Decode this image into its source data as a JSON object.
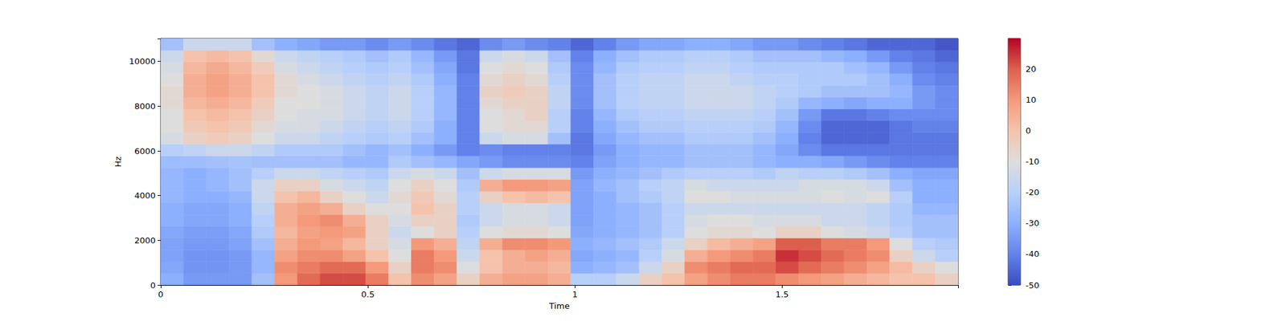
{
  "chart_data": {
    "type": "heatmap",
    "xlabel": "Time",
    "ylabel": "Hz",
    "xlim": [
      0,
      1.925
    ],
    "ylim": [
      0,
      11025
    ],
    "xticks": [
      0,
      0.5,
      1,
      1.5
    ],
    "yticks": [
      0,
      2000,
      4000,
      6000,
      8000,
      10000
    ],
    "grid": false,
    "x_edges": [
      0,
      0.055,
      0.11,
      0.165,
      0.22,
      0.275,
      0.33,
      0.385,
      0.44,
      0.495,
      0.55,
      0.605,
      0.66,
      0.715,
      0.77,
      0.825,
      0.88,
      0.935,
      0.99,
      1.045,
      1.1,
      1.155,
      1.21,
      1.265,
      1.32,
      1.375,
      1.43,
      1.485,
      1.54,
      1.595,
      1.65,
      1.705,
      1.76,
      1.815,
      1.87,
      1.925
    ],
    "y_edges": [
      0,
      525,
      1050,
      1575,
      2100,
      2625,
      3150,
      3675,
      4200,
      4725,
      5250,
      5775,
      6300,
      6825,
      7350,
      7875,
      8400,
      8925,
      9450,
      9975,
      10500,
      11025
    ],
    "z": [
      [
        -30,
        -35,
        -35,
        -35,
        -25,
        10,
        18,
        22,
        22,
        15,
        0,
        12,
        8,
        -5,
        5,
        8,
        8,
        5,
        -20,
        -20,
        -15,
        -5,
        0,
        8,
        12,
        15,
        15,
        12,
        10,
        8,
        5,
        3,
        0,
        0,
        -5
      ],
      [
        -32,
        -36,
        -36,
        -35,
        -28,
        12,
        15,
        18,
        18,
        10,
        -5,
        15,
        12,
        -10,
        0,
        5,
        5,
        3,
        -30,
        -28,
        -25,
        -15,
        -5,
        12,
        15,
        18,
        18,
        22,
        18,
        15,
        12,
        8,
        2,
        -5,
        -10
      ],
      [
        -33,
        -36,
        -36,
        -35,
        -28,
        8,
        12,
        12,
        8,
        0,
        -10,
        15,
        10,
        -15,
        0,
        5,
        8,
        5,
        -32,
        -30,
        -28,
        -20,
        -12,
        5,
        10,
        12,
        15,
        25,
        22,
        18,
        15,
        12,
        -5,
        -15,
        -20
      ],
      [
        -33,
        -35,
        -35,
        -33,
        -25,
        5,
        10,
        8,
        3,
        -5,
        -12,
        10,
        5,
        -18,
        5,
        12,
        12,
        10,
        -30,
        -28,
        -25,
        -22,
        -15,
        -5,
        2,
        5,
        8,
        20,
        20,
        15,
        15,
        10,
        -10,
        -20,
        -22
      ],
      [
        -32,
        -34,
        -34,
        -32,
        -22,
        3,
        8,
        10,
        8,
        -5,
        -15,
        -10,
        -5,
        -20,
        -10,
        -8,
        -8,
        -10,
        -32,
        -30,
        -28,
        -25,
        -20,
        -10,
        -8,
        -8,
        -10,
        -5,
        -5,
        -10,
        -12,
        -15,
        -20,
        -25,
        -25
      ],
      [
        -30,
        -32,
        -32,
        -30,
        -20,
        5,
        10,
        12,
        5,
        -5,
        -12,
        -5,
        -5,
        -22,
        -15,
        -12,
        -12,
        -15,
        -33,
        -30,
        -28,
        -25,
        -20,
        -12,
        -10,
        -10,
        -12,
        -12,
        -12,
        -15,
        -15,
        -18,
        -22,
        -25,
        -25
      ],
      [
        -30,
        -32,
        -32,
        -30,
        -18,
        5,
        8,
        5,
        -5,
        -10,
        -10,
        0,
        -5,
        -20,
        -15,
        -12,
        -12,
        -15,
        -33,
        -30,
        -28,
        -25,
        -20,
        -15,
        -15,
        -15,
        -15,
        -15,
        -15,
        -15,
        -15,
        -18,
        -22,
        -28,
        -28
      ],
      [
        -28,
        -30,
        -30,
        -28,
        -15,
        0,
        3,
        -5,
        -10,
        -15,
        -8,
        -2,
        -8,
        -20,
        -5,
        0,
        2,
        0,
        -33,
        -30,
        -25,
        -22,
        -18,
        -10,
        -10,
        -12,
        -12,
        -12,
        -12,
        -10,
        -12,
        -10,
        -20,
        -30,
        -30
      ],
      [
        -28,
        -30,
        -28,
        -25,
        -15,
        -5,
        -5,
        -12,
        -15,
        -18,
        -10,
        -5,
        -10,
        -22,
        5,
        10,
        10,
        8,
        -33,
        -28,
        -25,
        -20,
        -18,
        -12,
        -15,
        -15,
        -15,
        -15,
        -12,
        -12,
        -12,
        -15,
        -25,
        -30,
        -30
      ],
      [
        -28,
        -30,
        -28,
        -25,
        -20,
        -15,
        -15,
        -18,
        -20,
        -22,
        -15,
        -12,
        -15,
        -25,
        -15,
        -12,
        -12,
        -12,
        -35,
        -30,
        -28,
        -25,
        -22,
        -20,
        -20,
        -20,
        -22,
        -18,
        -20,
        -20,
        -22,
        -25,
        -30,
        -32,
        -32
      ],
      [
        -26,
        -26,
        -25,
        -24,
        -25,
        -25,
        -25,
        -25,
        -28,
        -28,
        -22,
        -25,
        -28,
        -32,
        -35,
        -38,
        -38,
        -38,
        -40,
        -33,
        -30,
        -28,
        -28,
        -25,
        -25,
        -25,
        -28,
        -30,
        -30,
        -32,
        -35,
        -38,
        -40,
        -40,
        -40
      ],
      [
        -20,
        -18,
        -15,
        -15,
        -18,
        -22,
        -22,
        -22,
        -25,
        -28,
        -25,
        -30,
        -35,
        -40,
        -38,
        -40,
        -40,
        -40,
        -42,
        -35,
        -30,
        -28,
        -28,
        -25,
        -25,
        -25,
        -28,
        -32,
        -38,
        -42,
        -42,
        -42,
        -42,
        -42,
        -42
      ],
      [
        -12,
        -5,
        -3,
        -5,
        -10,
        -15,
        -15,
        -18,
        -20,
        -22,
        -20,
        -25,
        -30,
        -40,
        -15,
        -12,
        -12,
        -25,
        -42,
        -32,
        -28,
        -25,
        -25,
        -22,
        -22,
        -22,
        -25,
        -30,
        -40,
        -45,
        -45,
        -45,
        -42,
        -42,
        -42
      ],
      [
        -10,
        -2,
        0,
        -2,
        -8,
        -12,
        -12,
        -15,
        -18,
        -20,
        -18,
        -22,
        -30,
        -40,
        -10,
        -8,
        -8,
        -20,
        -40,
        -30,
        -25,
        -22,
        -22,
        -20,
        -20,
        -20,
        -22,
        -28,
        -38,
        -45,
        -45,
        -45,
        -42,
        -40,
        -40
      ],
      [
        -10,
        0,
        2,
        0,
        -5,
        -10,
        -12,
        -12,
        -15,
        -18,
        -15,
        -20,
        -28,
        -40,
        -10,
        -8,
        -5,
        -20,
        -40,
        -28,
        -22,
        -20,
        -20,
        -18,
        -18,
        -18,
        -20,
        -25,
        -35,
        -42,
        -42,
        -40,
        -38,
        -38,
        -38
      ],
      [
        -8,
        3,
        5,
        3,
        -3,
        -10,
        -10,
        -12,
        -15,
        -18,
        -15,
        -20,
        -28,
        -40,
        -8,
        -5,
        -5,
        -18,
        -38,
        -25,
        -20,
        -18,
        -18,
        -15,
        -15,
        -15,
        -18,
        -22,
        -28,
        -30,
        -32,
        -30,
        -30,
        -35,
        -38
      ],
      [
        -8,
        5,
        8,
        5,
        0,
        -8,
        -10,
        -12,
        -15,
        -18,
        -15,
        -20,
        -28,
        -40,
        -5,
        -3,
        -5,
        -18,
        -38,
        -25,
        -20,
        -18,
        -18,
        -15,
        -15,
        -15,
        -18,
        -20,
        -22,
        -25,
        -25,
        -25,
        -28,
        -35,
        -38
      ],
      [
        -10,
        5,
        8,
        5,
        0,
        -8,
        -12,
        -15,
        -18,
        -20,
        -18,
        -22,
        -30,
        -40,
        -8,
        -5,
        -8,
        -20,
        -38,
        -25,
        -20,
        -18,
        -18,
        -15,
        -15,
        -18,
        -20,
        -20,
        -22,
        -22,
        -22,
        -25,
        -30,
        -38,
        -40
      ],
      [
        -12,
        3,
        6,
        3,
        -3,
        -12,
        -15,
        -18,
        -20,
        -22,
        -20,
        -25,
        -32,
        -42,
        -10,
        -8,
        -10,
        -22,
        -38,
        -28,
        -22,
        -20,
        -20,
        -18,
        -18,
        -20,
        -22,
        -22,
        -22,
        -22,
        -25,
        -28,
        -35,
        -40,
        -42
      ],
      [
        -15,
        0,
        2,
        0,
        -8,
        -15,
        -18,
        -20,
        -22,
        -25,
        -22,
        -28,
        -35,
        -42,
        -15,
        -12,
        -15,
        -25,
        -40,
        -30,
        -25,
        -22,
        -22,
        -20,
        -20,
        -22,
        -25,
        -25,
        -25,
        -28,
        -30,
        -35,
        -40,
        -42,
        -45
      ],
      [
        -25,
        -15,
        -15,
        -15,
        -25,
        -30,
        -32,
        -35,
        -35,
        -38,
        -35,
        -38,
        -42,
        -45,
        -38,
        -35,
        -38,
        -40,
        -45,
        -40,
        -35,
        -32,
        -32,
        -30,
        -30,
        -32,
        -35,
        -35,
        -38,
        -40,
        -42,
        -45,
        -45,
        -45,
        -48
      ]
    ],
    "colorbar": {
      "lim": [
        -50,
        29.8
      ],
      "ticks": [
        -50,
        -40,
        -30,
        -20,
        -10,
        0,
        10,
        20
      ]
    }
  }
}
